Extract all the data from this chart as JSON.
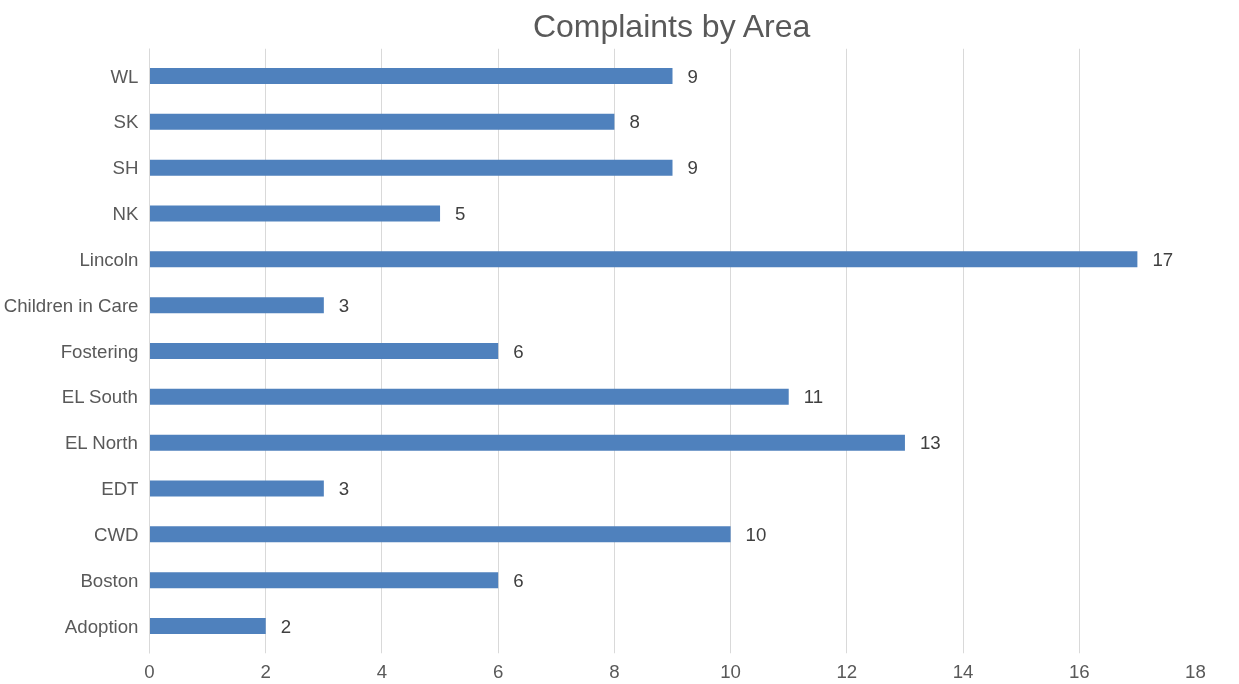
{
  "chart_data": {
    "type": "bar",
    "orientation": "horizontal",
    "title": "Complaints by Area",
    "categories": [
      "WL",
      "SK",
      "SH",
      "NK",
      "Lincoln",
      "Children in Care",
      "Fostering",
      "EL South",
      "EL North",
      "EDT",
      "CWD",
      "Boston",
      "Adoption"
    ],
    "values": [
      9,
      8,
      9,
      5,
      17,
      3,
      6,
      11,
      13,
      3,
      10,
      6,
      2
    ],
    "color": "#4f81bd",
    "xlim": [
      0,
      18
    ],
    "xticks": [
      0,
      2,
      4,
      6,
      8,
      10,
      12,
      14,
      16,
      18
    ],
    "grid": "x",
    "data_labels": true
  }
}
